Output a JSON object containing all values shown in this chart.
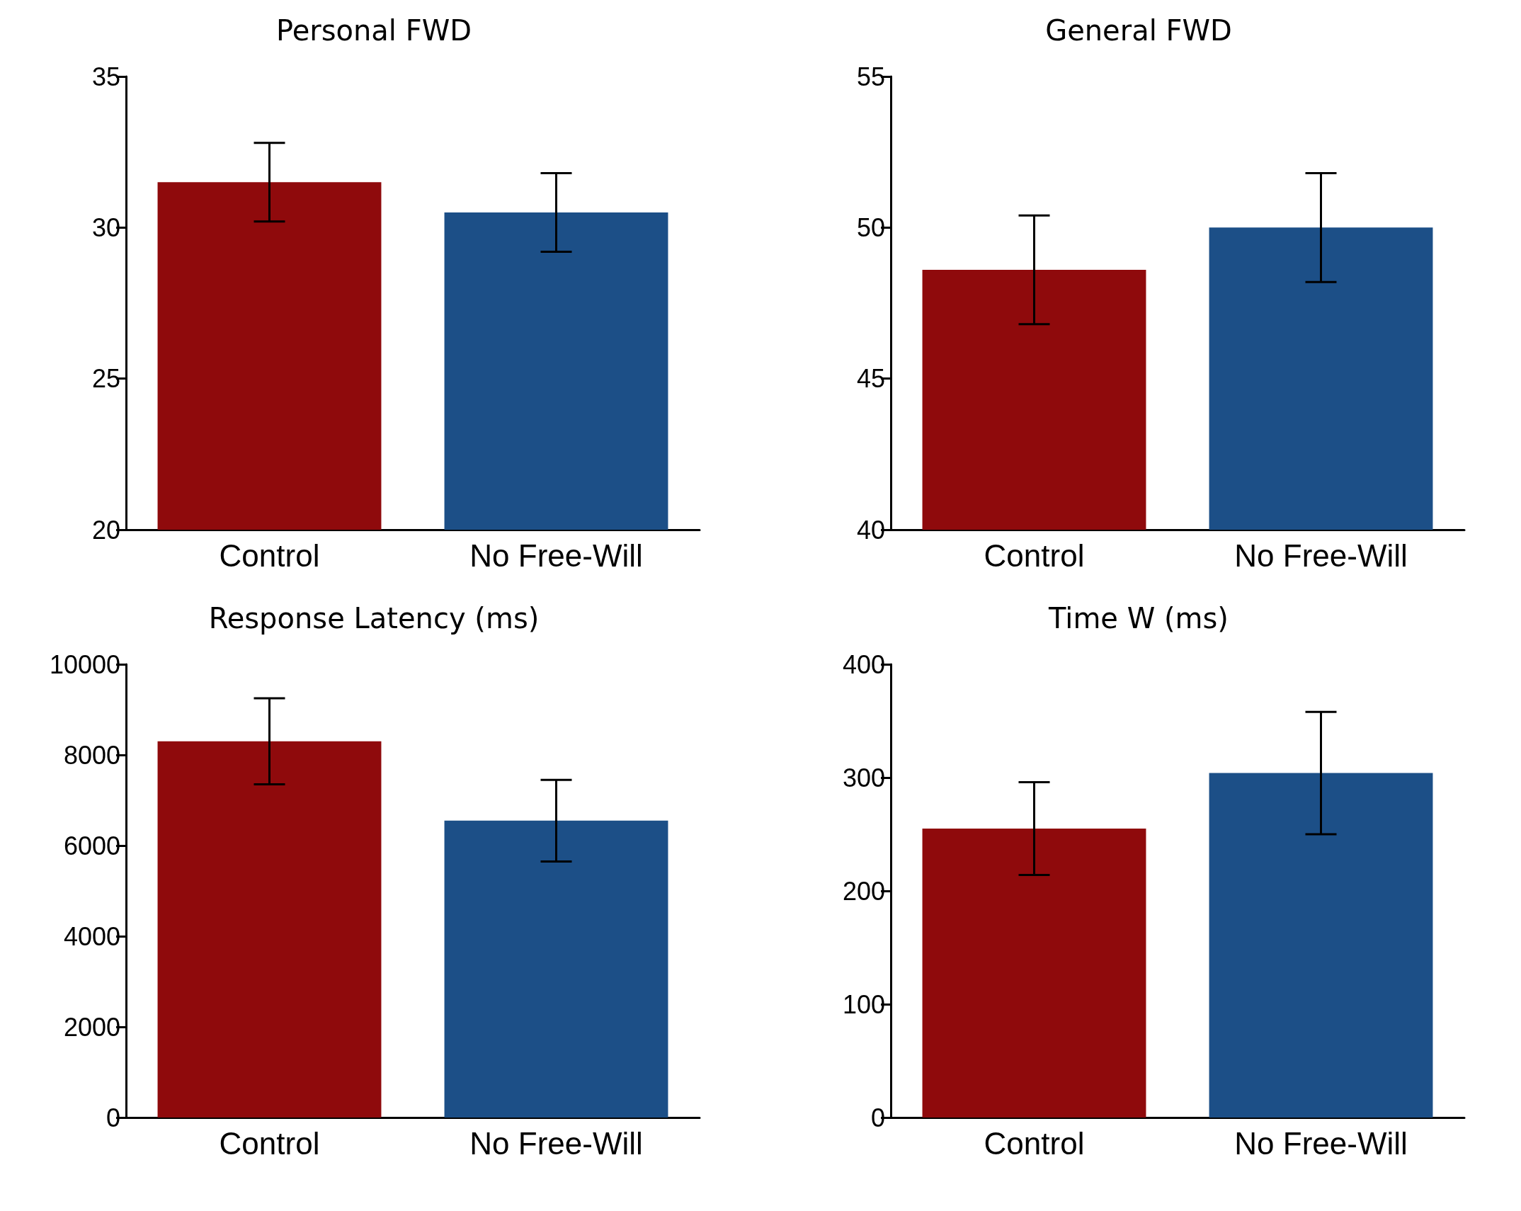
{
  "chart_data": [
    {
      "type": "bar",
      "title": "Personal FWD",
      "categories": [
        "Control",
        "No Free-Will"
      ],
      "values": [
        31.5,
        30.5
      ],
      "colors": [
        "#8f0a0c",
        "#1c4f87"
      ],
      "errors": [
        1.3,
        1.3
      ],
      "ylim": [
        20,
        35
      ],
      "yticks": [
        20,
        25,
        30,
        35
      ]
    },
    {
      "type": "bar",
      "title": "General FWD",
      "categories": [
        "Control",
        "No Free-Will"
      ],
      "values": [
        48.6,
        50.0
      ],
      "colors": [
        "#8f0a0c",
        "#1c4f87"
      ],
      "errors": [
        1.8,
        1.8
      ],
      "ylim": [
        40,
        55
      ],
      "yticks": [
        40,
        45,
        50,
        55
      ]
    },
    {
      "type": "bar",
      "title": "Response Latency (ms)",
      "categories": [
        "Control",
        "No Free-Will"
      ],
      "values": [
        8300,
        6550
      ],
      "colors": [
        "#8f0a0c",
        "#1c4f87"
      ],
      "errors": [
        950,
        900
      ],
      "ylim": [
        0,
        10000
      ],
      "yticks": [
        0,
        2000,
        4000,
        6000,
        8000,
        10000
      ]
    },
    {
      "type": "bar",
      "title": "Time W (ms)",
      "categories": [
        "Control",
        "No Free-Will"
      ],
      "values": [
        255,
        304
      ],
      "colors": [
        "#8f0a0c",
        "#1c4f87"
      ],
      "errors": [
        41,
        54
      ],
      "ylim": [
        0,
        400
      ],
      "yticks": [
        0,
        100,
        200,
        300,
        400
      ]
    }
  ]
}
